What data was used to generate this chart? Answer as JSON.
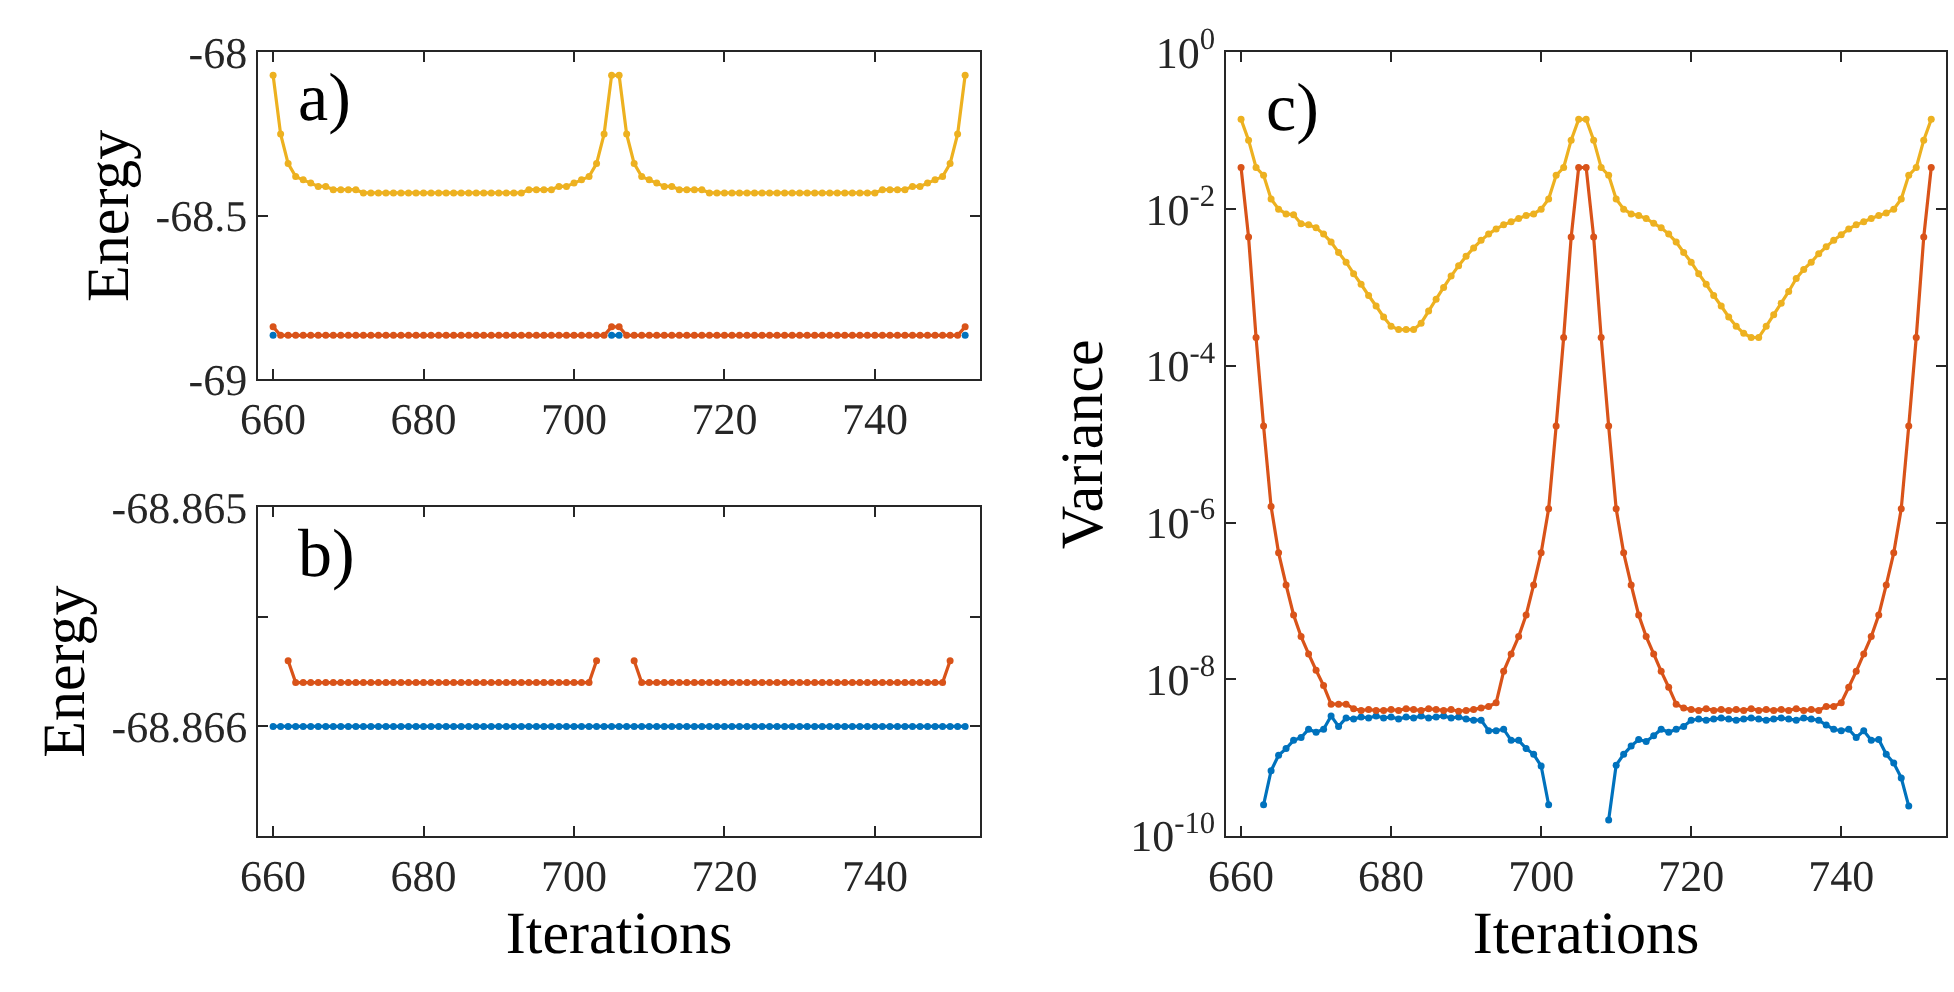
{
  "chart_data": [
    {
      "type": "line",
      "ylabel": "Energy",
      "annotations": [
        "a)"
      ],
      "marker": "circle",
      "line_style": "solid",
      "x": [
        660,
        661,
        662,
        663,
        664,
        665,
        666,
        667,
        668,
        669,
        670,
        671,
        672,
        673,
        674,
        675,
        676,
        677,
        678,
        679,
        680,
        681,
        682,
        683,
        684,
        685,
        686,
        687,
        688,
        689,
        690,
        691,
        692,
        693,
        694,
        695,
        696,
        697,
        698,
        699,
        700,
        701,
        702,
        703,
        704,
        705,
        706,
        707,
        708,
        709,
        710,
        711,
        712,
        713,
        714,
        715,
        716,
        717,
        718,
        719,
        720,
        721,
        722,
        723,
        724,
        725,
        726,
        727,
        728,
        729,
        730,
        731,
        732,
        733,
        734,
        735,
        736,
        737,
        738,
        739,
        740,
        741,
        742,
        743,
        744,
        745,
        746,
        747,
        748,
        749,
        750,
        751,
        752
      ],
      "xlim": [
        658,
        754
      ],
      "xticks": [
        660,
        680,
        700,
        720,
        740
      ],
      "ylim": [
        -69,
        -68
      ],
      "yticks": [
        -68,
        -68.5,
        -69
      ],
      "series": [
        {
          "color": "#0072bd",
          "values": [
            -68.866,
            null,
            null,
            null,
            null,
            null,
            null,
            null,
            null,
            null,
            null,
            null,
            null,
            null,
            null,
            null,
            null,
            null,
            null,
            null,
            null,
            null,
            null,
            null,
            null,
            null,
            null,
            null,
            null,
            null,
            null,
            null,
            null,
            null,
            null,
            null,
            null,
            null,
            null,
            null,
            null,
            null,
            null,
            null,
            null,
            -68.866,
            -68.866,
            null,
            null,
            null,
            null,
            null,
            null,
            null,
            null,
            null,
            null,
            null,
            null,
            null,
            null,
            null,
            null,
            null,
            null,
            null,
            null,
            null,
            null,
            null,
            null,
            null,
            null,
            null,
            null,
            null,
            null,
            null,
            null,
            null,
            null,
            null,
            null,
            null,
            null,
            null,
            null,
            null,
            null,
            null,
            null,
            null,
            -68.866
          ]
        },
        {
          "color": "#d95319",
          "values": [
            -68.84,
            -68.866,
            -68.866,
            -68.866,
            -68.866,
            -68.866,
            -68.866,
            -68.866,
            -68.866,
            -68.866,
            -68.866,
            -68.866,
            -68.866,
            -68.866,
            -68.866,
            -68.866,
            -68.866,
            -68.866,
            -68.866,
            -68.866,
            -68.866,
            -68.866,
            -68.866,
            -68.866,
            -68.866,
            -68.866,
            -68.866,
            -68.866,
            -68.866,
            -68.866,
            -68.866,
            -68.866,
            -68.866,
            -68.866,
            -68.866,
            -68.866,
            -68.866,
            -68.866,
            -68.866,
            -68.866,
            -68.866,
            -68.866,
            -68.866,
            -68.866,
            -68.866,
            -68.84,
            -68.84,
            -68.866,
            -68.866,
            -68.866,
            -68.866,
            -68.866,
            -68.866,
            -68.866,
            -68.866,
            -68.866,
            -68.866,
            -68.866,
            -68.866,
            -68.866,
            -68.866,
            -68.866,
            -68.866,
            -68.866,
            -68.866,
            -68.866,
            -68.866,
            -68.866,
            -68.866,
            -68.866,
            -68.866,
            -68.866,
            -68.866,
            -68.866,
            -68.866,
            -68.866,
            -68.866,
            -68.866,
            -68.866,
            -68.866,
            -68.866,
            -68.866,
            -68.866,
            -68.866,
            -68.866,
            -68.866,
            -68.866,
            -68.866,
            -68.866,
            -68.866,
            -68.866,
            -68.866,
            -68.84
          ]
        },
        {
          "color": "#edb120",
          "values": [
            -68.07,
            -68.25,
            -68.34,
            -68.38,
            -68.39,
            -68.4,
            -68.41,
            -68.41,
            -68.42,
            -68.42,
            -68.42,
            -68.42,
            -68.43,
            -68.43,
            -68.43,
            -68.43,
            -68.43,
            -68.43,
            -68.43,
            -68.43,
            -68.43,
            -68.43,
            -68.43,
            -68.43,
            -68.43,
            -68.43,
            -68.43,
            -68.43,
            -68.43,
            -68.43,
            -68.43,
            -68.43,
            -68.43,
            -68.43,
            -68.42,
            -68.42,
            -68.42,
            -68.42,
            -68.41,
            -68.41,
            -68.4,
            -68.39,
            -68.38,
            -68.34,
            -68.25,
            -68.07,
            -68.07,
            -68.25,
            -68.34,
            -68.38,
            -68.39,
            -68.4,
            -68.41,
            -68.41,
            -68.42,
            -68.42,
            -68.42,
            -68.42,
            -68.43,
            -68.43,
            -68.43,
            -68.43,
            -68.43,
            -68.43,
            -68.43,
            -68.43,
            -68.43,
            -68.43,
            -68.43,
            -68.43,
            -68.43,
            -68.43,
            -68.43,
            -68.43,
            -68.43,
            -68.43,
            -68.43,
            -68.43,
            -68.43,
            -68.43,
            -68.43,
            -68.42,
            -68.42,
            -68.42,
            -68.42,
            -68.41,
            -68.41,
            -68.4,
            -68.39,
            -68.38,
            -68.34,
            -68.25,
            -68.07
          ]
        }
      ]
    },
    {
      "type": "line",
      "xlabel": "Iterations",
      "ylabel": "Energy",
      "annotations": [
        "b)"
      ],
      "marker": "circle",
      "line_style": "solid",
      "x": [
        660,
        661,
        662,
        663,
        664,
        665,
        666,
        667,
        668,
        669,
        670,
        671,
        672,
        673,
        674,
        675,
        676,
        677,
        678,
        679,
        680,
        681,
        682,
        683,
        684,
        685,
        686,
        687,
        688,
        689,
        690,
        691,
        692,
        693,
        694,
        695,
        696,
        697,
        698,
        699,
        700,
        701,
        702,
        703,
        704,
        705,
        706,
        707,
        708,
        709,
        710,
        711,
        712,
        713,
        714,
        715,
        716,
        717,
        718,
        719,
        720,
        721,
        722,
        723,
        724,
        725,
        726,
        727,
        728,
        729,
        730,
        731,
        732,
        733,
        734,
        735,
        736,
        737,
        738,
        739,
        740,
        741,
        742,
        743,
        744,
        745,
        746,
        747,
        748,
        749,
        750,
        751,
        752
      ],
      "xlim": [
        658,
        754
      ],
      "xticks": [
        660,
        680,
        700,
        720,
        740
      ],
      "ylim": [
        -68.8665,
        -68.865
      ],
      "yticks": [
        -68.865,
        {
          "value": -68.8655,
          "label": null
        },
        -68.866
      ],
      "series": [
        {
          "color": "#0072bd",
          "values": [
            -68.866,
            -68.866,
            -68.866,
            -68.866,
            -68.866,
            -68.866,
            -68.866,
            -68.866,
            -68.866,
            -68.866,
            -68.866,
            -68.866,
            -68.866,
            -68.866,
            -68.866,
            -68.866,
            -68.866,
            -68.866,
            -68.866,
            -68.866,
            -68.866,
            -68.866,
            -68.866,
            -68.866,
            -68.866,
            -68.866,
            -68.866,
            -68.866,
            -68.866,
            -68.866,
            -68.866,
            -68.866,
            -68.866,
            -68.866,
            -68.866,
            -68.866,
            -68.866,
            -68.866,
            -68.866,
            -68.866,
            -68.866,
            -68.866,
            -68.866,
            -68.866,
            -68.866,
            -68.866,
            -68.866,
            -68.866,
            -68.866,
            -68.866,
            -68.866,
            -68.866,
            -68.866,
            -68.866,
            -68.866,
            -68.866,
            -68.866,
            -68.866,
            -68.866,
            -68.866,
            -68.866,
            -68.866,
            -68.866,
            -68.866,
            -68.866,
            -68.866,
            -68.866,
            -68.866,
            -68.866,
            -68.866,
            -68.866,
            -68.866,
            -68.866,
            -68.866,
            -68.866,
            -68.866,
            -68.866,
            -68.866,
            -68.866,
            -68.866,
            -68.866,
            -68.866,
            -68.866,
            -68.866,
            -68.866,
            -68.866,
            -68.866,
            -68.866,
            -68.866,
            -68.866,
            -68.866,
            -68.866,
            -68.866
          ]
        },
        {
          "color": "#d95319",
          "values": [
            null,
            null,
            -68.8657,
            -68.8658,
            -68.8658,
            -68.8658,
            -68.8658,
            -68.8658,
            -68.8658,
            -68.8658,
            -68.8658,
            -68.8658,
            -68.8658,
            -68.8658,
            -68.8658,
            -68.8658,
            -68.8658,
            -68.8658,
            -68.8658,
            -68.8658,
            -68.8658,
            -68.8658,
            -68.8658,
            -68.8658,
            -68.8658,
            -68.8658,
            -68.8658,
            -68.8658,
            -68.8658,
            -68.8658,
            -68.8658,
            -68.8658,
            -68.8658,
            -68.8658,
            -68.8658,
            -68.8658,
            -68.8658,
            -68.8658,
            -68.8658,
            -68.8658,
            -68.8658,
            -68.8658,
            -68.8658,
            -68.8657,
            null,
            null,
            null,
            null,
            -68.8657,
            -68.8658,
            -68.8658,
            -68.8658,
            -68.8658,
            -68.8658,
            -68.8658,
            -68.8658,
            -68.8658,
            -68.8658,
            -68.8658,
            -68.8658,
            -68.8658,
            -68.8658,
            -68.8658,
            -68.8658,
            -68.8658,
            -68.8658,
            -68.8658,
            -68.8658,
            -68.8658,
            -68.8658,
            -68.8658,
            -68.8658,
            -68.8658,
            -68.8658,
            -68.8658,
            -68.8658,
            -68.8658,
            -68.8658,
            -68.8658,
            -68.8658,
            -68.8658,
            -68.8658,
            -68.8658,
            -68.8658,
            -68.8658,
            -68.8658,
            -68.8658,
            -68.8658,
            -68.8658,
            -68.8658,
            -68.8657,
            null,
            null
          ]
        }
      ]
    },
    {
      "type": "line",
      "xlabel": "Iterations",
      "ylabel": "Variance",
      "annotations": [
        "c)"
      ],
      "marker": "circle",
      "line_style": "solid",
      "log": true,
      "x": [
        660,
        661,
        662,
        663,
        664,
        665,
        666,
        667,
        668,
        669,
        670,
        671,
        672,
        673,
        674,
        675,
        676,
        677,
        678,
        679,
        680,
        681,
        682,
        683,
        684,
        685,
        686,
        687,
        688,
        689,
        690,
        691,
        692,
        693,
        694,
        695,
        696,
        697,
        698,
        699,
        700,
        701,
        702,
        703,
        704,
        705,
        706,
        707,
        708,
        709,
        710,
        711,
        712,
        713,
        714,
        715,
        716,
        717,
        718,
        719,
        720,
        721,
        722,
        723,
        724,
        725,
        726,
        727,
        728,
        729,
        730,
        731,
        732,
        733,
        734,
        735,
        736,
        737,
        738,
        739,
        740,
        741,
        742,
        743,
        744,
        745,
        746,
        747,
        748,
        749,
        750,
        751,
        752
      ],
      "xlim": [
        658,
        754
      ],
      "xticks": [
        660,
        680,
        700,
        720,
        740
      ],
      "ylim": [
        1e-10,
        1
      ],
      "yticks": [
        {
          "value": 1,
          "label": "10$^{0}$"
        },
        {
          "value": 0.01,
          "label": "10$^{-2}$"
        },
        {
          "value": 0.0001,
          "label": "10$^{-4}$"
        },
        {
          "value": 1e-06,
          "label": "10$^{-6}$"
        },
        {
          "value": 1e-08,
          "label": "10$^{-8}$"
        },
        {
          "value": 1e-10,
          "label": "10$^{-10}$"
        }
      ],
      "series": [
        {
          "color": "#0072bd",
          "values": [
            null,
            null,
            null,
            2.5e-10,
            6.8e-10,
            1.07e-09,
            1.3e-09,
            1.66e-09,
            1.8e-09,
            2.3e-09,
            2.1e-09,
            2.3e-09,
            3.4e-09,
            2.5e-09,
            3.2e-09,
            3.1e-09,
            3.3e-09,
            3.2e-09,
            3.4e-09,
            3.2e-09,
            3.3e-09,
            3.1e-09,
            3.3e-09,
            3.2e-09,
            3.4e-09,
            3.2e-09,
            3.3e-09,
            3.4e-09,
            3.2e-09,
            3.3e-09,
            3.1e-09,
            3e-09,
            3e-09,
            2.2e-09,
            2.2e-09,
            2.3e-09,
            1.66e-09,
            1.66e-09,
            1.3e-09,
            1.1e-09,
            7.8e-10,
            2.5e-10,
            null,
            null,
            null,
            null,
            null,
            null,
            null,
            1.6e-10,
            8e-10,
            1.1e-09,
            1.4e-09,
            1.7e-09,
            1.6e-09,
            1.9e-09,
            2.3e-09,
            2.1e-09,
            2.3e-09,
            2.5e-09,
            3e-09,
            3.1e-09,
            3e-09,
            3.1e-09,
            3.2e-09,
            3.1e-09,
            3e-09,
            3.1e-09,
            3.2e-09,
            3.1e-09,
            3e-09,
            3.1e-09,
            3.2e-09,
            3.1e-09,
            3e-09,
            3.2e-09,
            3.1e-09,
            3e-09,
            2.6e-09,
            2.3e-09,
            2.2e-09,
            2.3e-09,
            1.8e-09,
            2.2e-09,
            1.66e-09,
            1.7e-09,
            1.1e-09,
            8.5e-10,
            5.5e-10,
            2.4e-10,
            null,
            null,
            null
          ]
        },
        {
          "color": "#d95319",
          "values": [
            0.034,
            0.0044,
            0.00023,
            1.7e-05,
            1.6e-06,
            4.1e-07,
            1.6e-07,
            6.6e-08,
            3.5e-08,
            2.1e-08,
            1.3e-08,
            8.3e-09,
            4.8e-09,
            4.8e-09,
            4.8e-09,
            4.2e-09,
            4e-09,
            4.1e-09,
            4e-09,
            4e-09,
            4.1e-09,
            4e-09,
            4.2e-09,
            4.1e-09,
            4e-09,
            4.2e-09,
            4.1e-09,
            4e-09,
            4.1e-09,
            3.9e-09,
            4e-09,
            4.1e-09,
            4.3e-09,
            4.5e-09,
            5e-09,
            1.26e-08,
            2.1e-08,
            3.5e-08,
            6.6e-08,
            1.6e-07,
            4.1e-07,
            1.5e-06,
            1.7e-05,
            0.00023,
            0.0044,
            0.034,
            0.034,
            0.0044,
            0.00023,
            1.7e-05,
            1.5e-06,
            4.1e-07,
            1.6e-07,
            6.6e-08,
            3.5e-08,
            2.1e-08,
            1.26e-08,
            7.9e-09,
            4.8e-09,
            4.3e-09,
            4.1e-09,
            4e-09,
            4.2e-09,
            4e-09,
            4.1e-09,
            4e-09,
            4.1e-09,
            4e-09,
            4.2e-09,
            4e-09,
            4.1e-09,
            4e-09,
            4.1e-09,
            4e-09,
            4.2e-09,
            4e-09,
            4.1e-09,
            4e-09,
            4.5e-09,
            4.5e-09,
            5e-09,
            7.9e-09,
            1.26e-08,
            2.1e-08,
            3.5e-08,
            6.6e-08,
            1.6e-07,
            4.1e-07,
            1.5e-06,
            1.7e-05,
            0.00023,
            0.0044,
            0.034
          ]
        },
        {
          "color": "#edb120",
          "values": [
            0.14,
            0.076,
            0.034,
            0.027,
            0.0135,
            0.01,
            0.0087,
            0.0085,
            0.0065,
            0.0063,
            0.0058,
            0.0048,
            0.0038,
            0.0028,
            0.0021,
            0.0015,
            0.0011,
            0.00079,
            0.00058,
            0.00042,
            0.00032,
            0.00029,
            0.00029,
            0.00029,
            0.00035,
            0.0005,
            0.00071,
            0.001,
            0.0014,
            0.0019,
            0.0025,
            0.0032,
            0.004,
            0.0048,
            0.0056,
            0.0063,
            0.0069,
            0.0076,
            0.0083,
            0.0087,
            0.01,
            0.0135,
            0.027,
            0.034,
            0.076,
            0.14,
            0.14,
            0.076,
            0.034,
            0.027,
            0.0135,
            0.01,
            0.0087,
            0.0083,
            0.0076,
            0.0066,
            0.0058,
            0.0048,
            0.0038,
            0.0028,
            0.0021,
            0.0015,
            0.0011,
            0.00079,
            0.00058,
            0.00042,
            0.00032,
            0.00026,
            0.00023,
            0.00023,
            0.00032,
            0.00045,
            0.00063,
            0.00089,
            0.0013,
            0.0017,
            0.0021,
            0.0027,
            0.0033,
            0.004,
            0.0047,
            0.0056,
            0.0063,
            0.0069,
            0.0076,
            0.0083,
            0.0089,
            0.01,
            0.0135,
            0.027,
            0.034,
            0.076,
            0.14
          ]
        }
      ]
    }
  ]
}
